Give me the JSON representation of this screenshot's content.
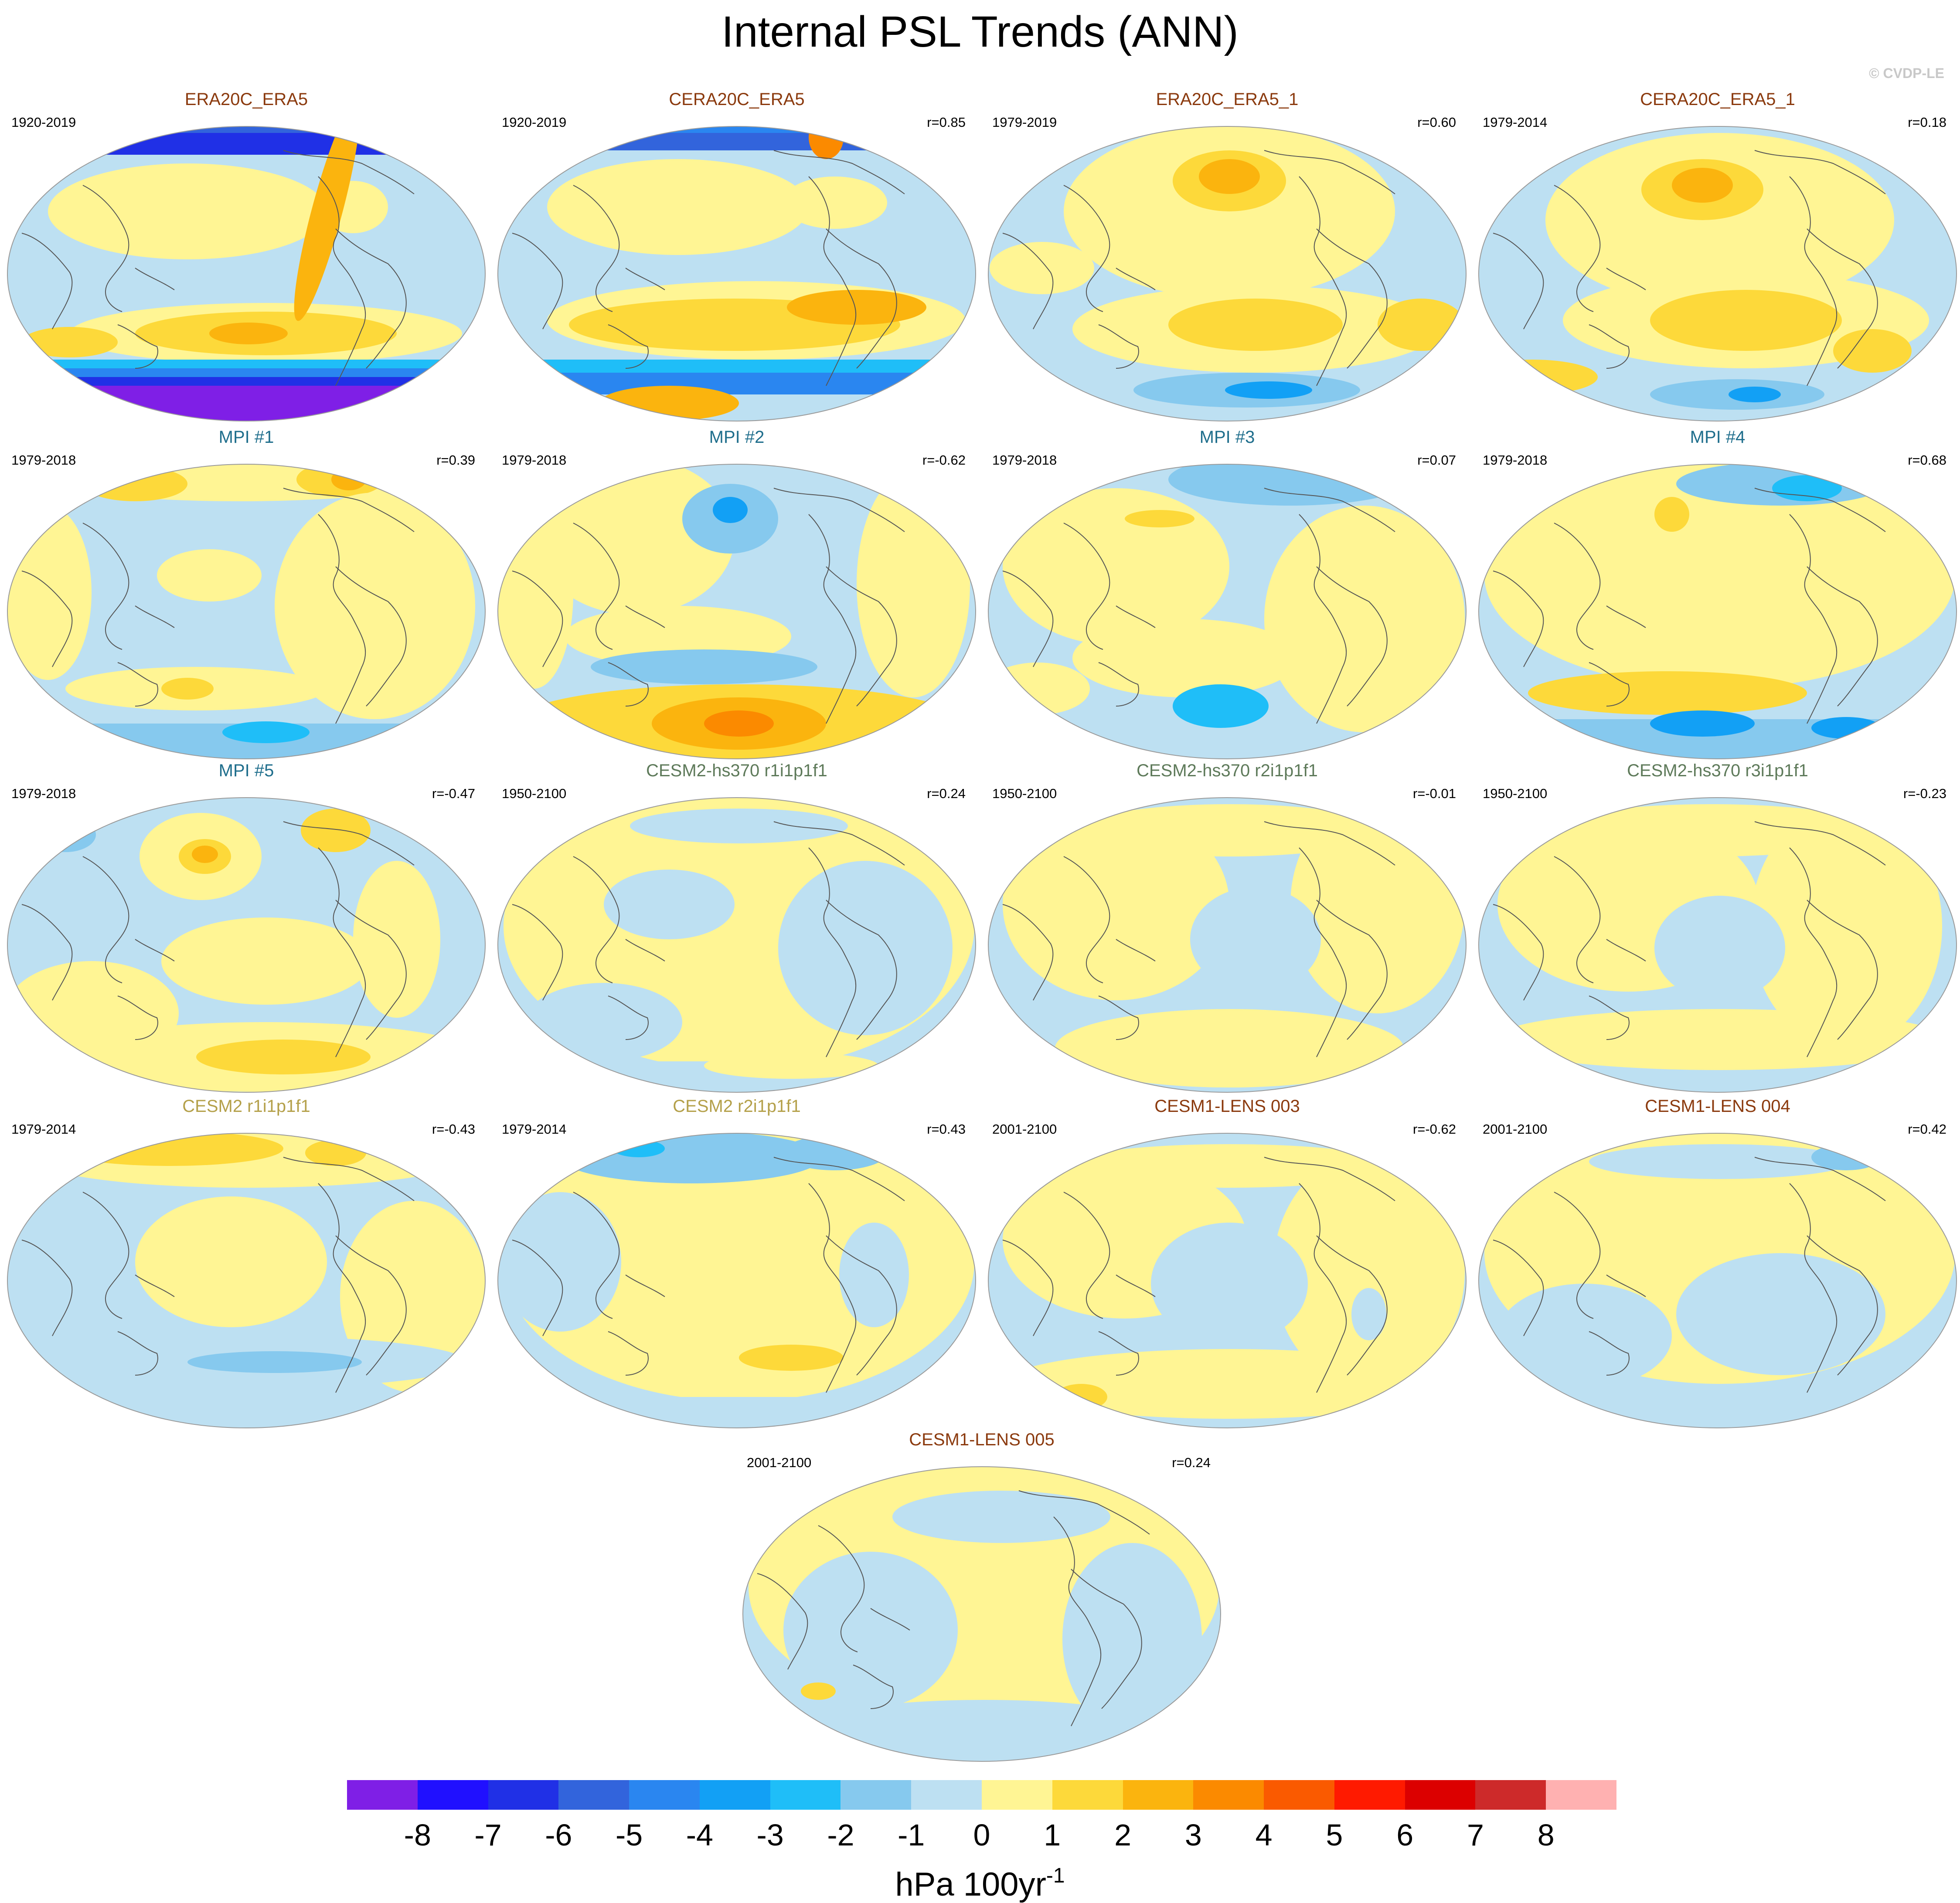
{
  "header": {
    "title": "Internal PSL Trends (ANN)",
    "watermark": "© CVDP-LE"
  },
  "panels": [
    {
      "title": "ERA20C_ERA5",
      "period": "1920-2019",
      "corr": "",
      "title_color": "#8b3a0e",
      "pattern": "reanalysis_strong"
    },
    {
      "title": "CERA20C_ERA5",
      "period": "1920-2019",
      "corr": "r=0.85",
      "title_color": "#8b3a0e",
      "pattern": "reanalysis_strong2"
    },
    {
      "title": "ERA20C_ERA5_1",
      "period": "1979-2019",
      "corr": "r=0.60",
      "title_color": "#8b3a0e",
      "pattern": "reanalysis_recent"
    },
    {
      "title": "CERA20C_ERA5_1",
      "period": "1979-2014",
      "corr": "r=0.18",
      "title_color": "#8b3a0e",
      "pattern": "reanalysis_recent2"
    },
    {
      "title": "MPI #1",
      "period": "1979-2018",
      "corr": "r=0.39",
      "title_color": "#1f6e8c",
      "pattern": "mpi1"
    },
    {
      "title": "MPI #2",
      "period": "1979-2018",
      "corr": "r=-0.62",
      "title_color": "#1f6e8c",
      "pattern": "mpi2"
    },
    {
      "title": "MPI #3",
      "period": "1979-2018",
      "corr": "r=0.07",
      "title_color": "#1f6e8c",
      "pattern": "mpi3"
    },
    {
      "title": "MPI #4",
      "period": "1979-2018",
      "corr": "r=0.68",
      "title_color": "#1f6e8c",
      "pattern": "mpi4"
    },
    {
      "title": "MPI #5",
      "period": "1979-2018",
      "corr": "r=-0.47",
      "title_color": "#1f6e8c",
      "pattern": "mpi5"
    },
    {
      "title": "CESM2-hs370 r1i1p1f1",
      "period": "1950-2100",
      "corr": "r=0.24",
      "title_color": "#5e7a5a",
      "pattern": "weak1"
    },
    {
      "title": "CESM2-hs370 r2i1p1f1",
      "period": "1950-2100",
      "corr": "r=-0.01",
      "title_color": "#5e7a5a",
      "pattern": "weak2"
    },
    {
      "title": "CESM2-hs370 r3i1p1f1",
      "period": "1950-2100",
      "corr": "r=-0.23",
      "title_color": "#5e7a5a",
      "pattern": "weak3"
    },
    {
      "title": "CESM2 r1i1p1f1",
      "period": "1979-2014",
      "corr": "r=-0.43",
      "title_color": "#b4a04a",
      "pattern": "cesm2a"
    },
    {
      "title": "CESM2 r2i1p1f1",
      "period": "1979-2014",
      "corr": "r=0.43",
      "title_color": "#b4a04a",
      "pattern": "cesm2b"
    },
    {
      "title": "CESM1-LENS 003",
      "period": "2001-2100",
      "corr": "r=-0.62",
      "title_color": "#8b3a0e",
      "pattern": "lens3"
    },
    {
      "title": "CESM1-LENS 004",
      "period": "2001-2100",
      "corr": "r=0.42",
      "title_color": "#8b3a0e",
      "pattern": "lens4"
    },
    {
      "title": "CESM1-LENS 005",
      "period": "2001-2100",
      "corr": "r=0.24",
      "title_color": "#8b3a0e",
      "pattern": "lens5"
    }
  ],
  "colorbar": {
    "labels": [
      "-8",
      "-7",
      "-6",
      "-5",
      "-4",
      "-3",
      "-2",
      "-1",
      "0",
      "1",
      "2",
      "3",
      "4",
      "5",
      "6",
      "7",
      "8"
    ],
    "colors": [
      "#7f1fe6",
      "#2010ff",
      "#2030e6",
      "#3264dc",
      "#2a86f0",
      "#12a0f5",
      "#1fbef8",
      "#86c9ee",
      "#bde0f2",
      "#fff594",
      "#fdd93a",
      "#fbb40e",
      "#fb8a00",
      "#fa5a00",
      "#ff1a00",
      "#dc0000",
      "#cd2a2a",
      "#ffb1b1"
    ],
    "units_main": "hPa 100yr",
    "units_sup": "-1"
  }
}
